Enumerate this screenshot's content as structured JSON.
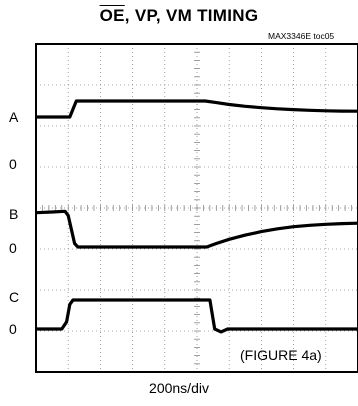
{
  "title": {
    "overlined": "OE",
    "rest": ", VP, VM TIMING"
  },
  "part_ref": "MAX3346E toc05",
  "channel_labels": {
    "a_high": "A",
    "a_low": "0",
    "b_high": "B",
    "b_low": "0",
    "c_high": "C",
    "c_low": "0"
  },
  "x_scale_label": "200ns/div",
  "figure_label": "(FIGURE 4a)",
  "chart_data": {
    "type": "line",
    "title": "OE, VP, VM TIMING",
    "xlabel": "200ns/div",
    "x_unit": "divisions (200ns/div)",
    "xlim": [
      0,
      10
    ],
    "grid": true,
    "grid_divisions": {
      "x": 10,
      "y": 8
    },
    "annotation": "(FIGURE 4a)",
    "series": [
      {
        "name": "A",
        "low_label": "0",
        "points": [
          [
            0,
            0
          ],
          [
            1.05,
            0
          ],
          [
            1.25,
            1
          ],
          [
            5.25,
            1
          ],
          [
            5.6,
            0.9
          ],
          [
            6.0,
            0.78
          ],
          [
            6.5,
            0.67
          ],
          [
            7.0,
            0.58
          ],
          [
            7.5,
            0.51
          ],
          [
            8.0,
            0.46
          ],
          [
            8.5,
            0.42
          ],
          [
            9.0,
            0.39
          ],
          [
            9.5,
            0.37
          ],
          [
            10,
            0.36
          ]
        ]
      },
      {
        "name": "B",
        "low_label": "0",
        "points": [
          [
            0,
            0.98
          ],
          [
            0.5,
            1
          ],
          [
            0.9,
            1.02
          ],
          [
            1.0,
            0.9
          ],
          [
            1.2,
            0.1
          ],
          [
            1.3,
            0
          ],
          [
            5.3,
            0
          ],
          [
            5.6,
            0.1
          ],
          [
            6.0,
            0.22
          ],
          [
            6.5,
            0.34
          ],
          [
            7.0,
            0.44
          ],
          [
            7.5,
            0.52
          ],
          [
            8.0,
            0.58
          ],
          [
            8.5,
            0.62
          ],
          [
            9.0,
            0.65
          ],
          [
            9.5,
            0.67
          ],
          [
            10,
            0.68
          ]
        ]
      },
      {
        "name": "C",
        "low_label": "0",
        "points": [
          [
            0,
            0
          ],
          [
            0.8,
            0
          ],
          [
            0.95,
            0.25
          ],
          [
            1.05,
            0.85
          ],
          [
            1.15,
            1
          ],
          [
            5.4,
            1
          ],
          [
            5.55,
            0
          ],
          [
            5.75,
            -0.1
          ],
          [
            5.95,
            0
          ],
          [
            10,
            0
          ]
        ]
      }
    ]
  }
}
